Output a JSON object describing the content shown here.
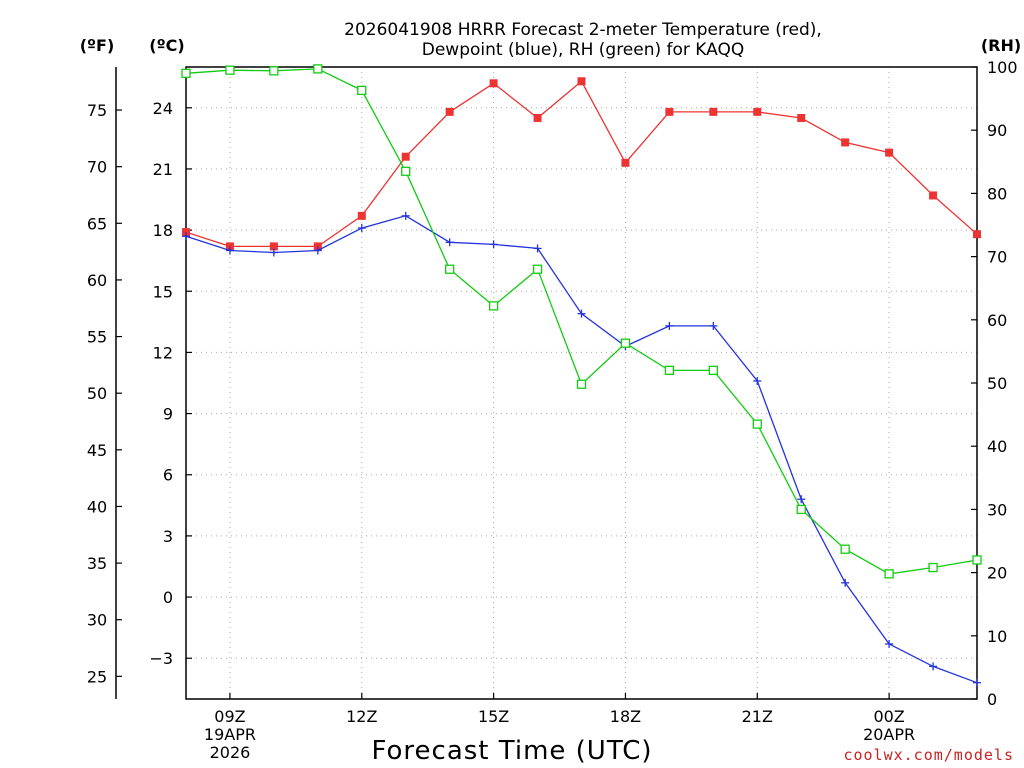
{
  "chart_data": {
    "type": "line",
    "title_line1": "2026041908 HRRR Forecast 2-meter Temperature (red),",
    "title_line2": "Dewpoint (blue), RH (green) for KAQQ",
    "xlabel": "Forecast Time (UTC)",
    "watermark": "coolwx.com/models",
    "units": {
      "fahrenheit": "(ºF)",
      "celsius": "(ºC)",
      "rh": "(RH)"
    },
    "hours": [
      8,
      9,
      10,
      11,
      12,
      13,
      14,
      15,
      16,
      17,
      18,
      19,
      20,
      21,
      22,
      23,
      24,
      25,
      26
    ],
    "x_ticks": [
      {
        "hour": 9,
        "lines": [
          "09Z",
          "19APR",
          "2026"
        ]
      },
      {
        "hour": 12,
        "lines": [
          "12Z"
        ]
      },
      {
        "hour": 15,
        "lines": [
          "15Z"
        ]
      },
      {
        "hour": 18,
        "lines": [
          "18Z"
        ]
      },
      {
        "hour": 21,
        "lines": [
          "21Z"
        ]
      },
      {
        "hour": 24,
        "lines": [
          "00Z",
          "20APR"
        ]
      }
    ],
    "xlim": [
      8,
      26
    ],
    "ylim_c": [
      -5,
      26
    ],
    "ylim_rh": [
      0,
      100
    ],
    "celsius_ticks": [
      -3,
      0,
      3,
      6,
      9,
      12,
      15,
      18,
      21,
      24
    ],
    "fahrenheit_ticks": [
      25,
      30,
      35,
      40,
      45,
      50,
      55,
      60,
      65,
      70,
      75
    ],
    "rh_ticks": [
      0,
      10,
      20,
      30,
      40,
      50,
      60,
      70,
      80,
      90,
      100
    ],
    "series": [
      {
        "name": "2-meter Temperature",
        "axis": "C",
        "color": "#ee3333",
        "marker": "filled-square",
        "values": [
          17.9,
          17.2,
          17.2,
          17.2,
          18.7,
          21.6,
          23.8,
          25.2,
          23.5,
          25.3,
          21.3,
          23.8,
          23.8,
          23.8,
          23.5,
          22.3,
          21.8,
          19.7,
          17.8
        ]
      },
      {
        "name": "Dewpoint",
        "axis": "C",
        "color": "#2233dd",
        "marker": "plus",
        "values": [
          17.7,
          17.0,
          16.9,
          17.0,
          18.1,
          18.7,
          17.4,
          17.3,
          17.1,
          13.9,
          12.3,
          13.3,
          13.3,
          10.6,
          4.8,
          0.7,
          -2.3,
          -3.4,
          -4.2
        ]
      },
      {
        "name": "RH",
        "axis": "RH",
        "color": "#11cc11",
        "marker": "open-square",
        "values": [
          99,
          99.5,
          99.4,
          99.7,
          96.3,
          83.5,
          68,
          62.2,
          68,
          49.8,
          56.3,
          52,
          52,
          43.5,
          30,
          23.7,
          19.8,
          20.8,
          22
        ]
      }
    ]
  }
}
